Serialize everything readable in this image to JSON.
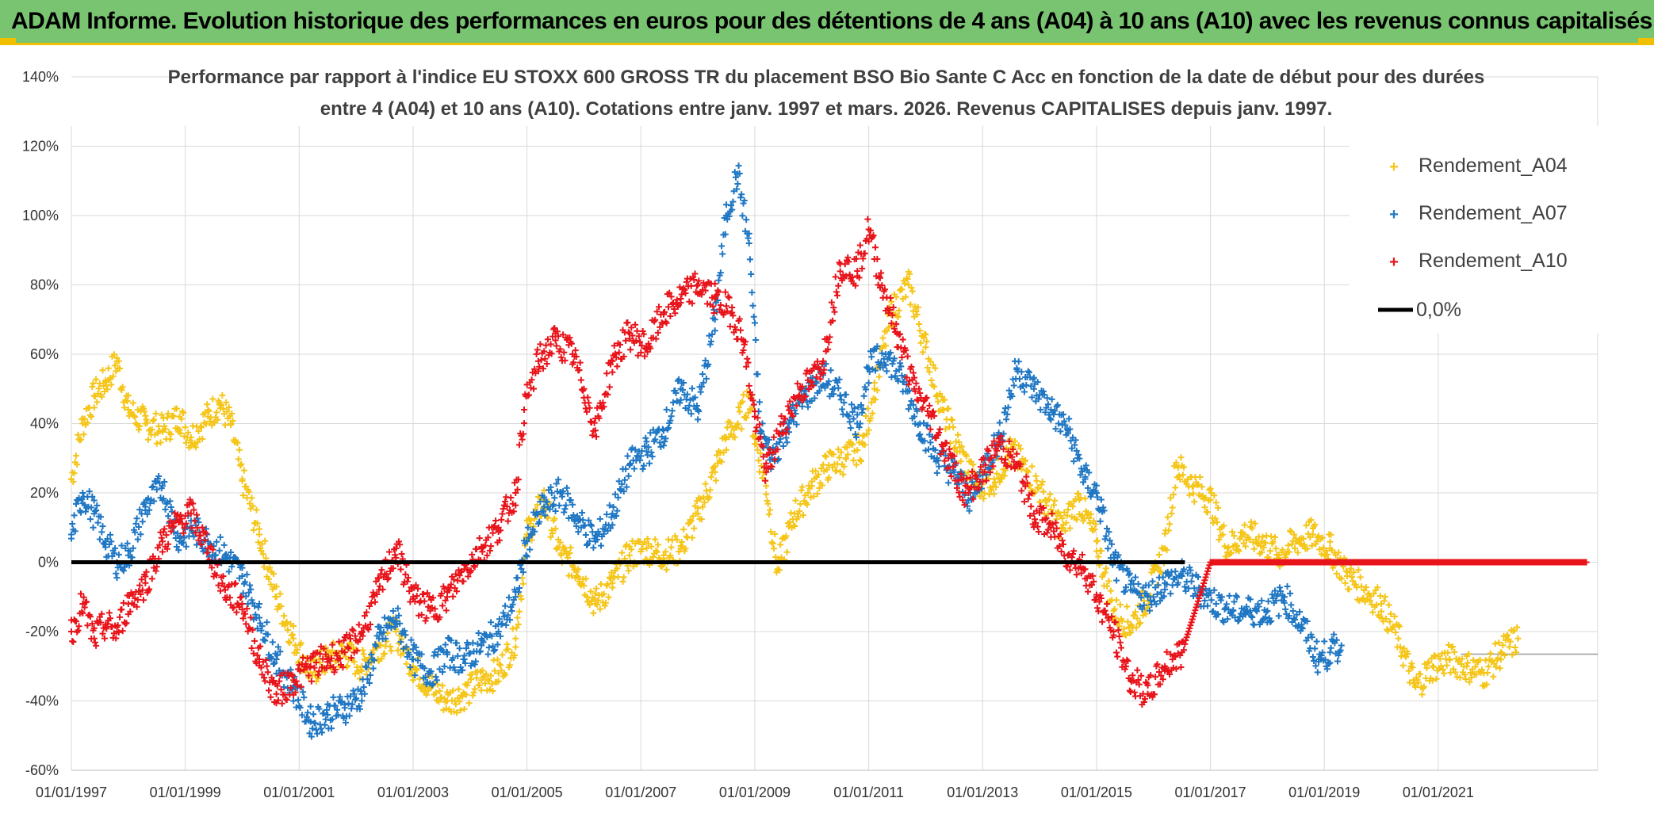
{
  "header": {
    "title": "ADAM Informe. Evolution historique des performances en euros pour des détentions de 4 ans (A04) à 10 ans (A10) avec les revenus connus capitalisés"
  },
  "chart_data": {
    "type": "scatter",
    "title_lines": [
      "Performance par rapport à l'indice EU STOXX 600 GROSS TR  du placement BSO Bio Sante C Acc en fonction de la date de début pour des durées",
      "entre 4 (A04) et 10 ans (A10). Cotations entre janv. 1997 et mars. 2026. Revenus CAPITALISES depuis janv. 1997."
    ],
    "xlabel": "",
    "ylabel": "",
    "x_range": [
      1997.0,
      2023.8
    ],
    "ylim": [
      -60,
      140
    ],
    "y_ticks": [
      "140%",
      "120%",
      "100%",
      "80%",
      "60%",
      "40%",
      "20%",
      "0%",
      "-20%",
      "-40%",
      "-60%"
    ],
    "y_tick_values": [
      140,
      120,
      100,
      80,
      60,
      40,
      20,
      0,
      -20,
      -40,
      -60
    ],
    "x_ticks": [
      "01/01/1997",
      "01/01/1999",
      "01/01/2001",
      "01/01/2003",
      "01/01/2005",
      "01/01/2007",
      "01/01/2009",
      "01/01/2011",
      "01/01/2013",
      "01/01/2015",
      "01/01/2017",
      "01/01/2019",
      "01/01/2021"
    ],
    "x_tick_values": [
      1997,
      1999,
      2001,
      2003,
      2005,
      2007,
      2009,
      2011,
      2013,
      2015,
      2017,
      2019,
      2021
    ],
    "grid": true,
    "legend_position": "top-right",
    "series": [
      {
        "name": "Rendement_A04",
        "color": "#f5c518",
        "marker": "plus",
        "x": [
          1997.0,
          1997.2,
          1997.4,
          1997.6,
          1997.8,
          1998.0,
          1998.3,
          1998.6,
          1998.9,
          1999.1,
          1999.4,
          1999.6,
          1999.8,
          2000.0,
          2000.3,
          2000.6,
          2000.9,
          2001.2,
          2001.5,
          2001.8,
          2002.1,
          2002.4,
          2002.7,
          2003.0,
          2003.3,
          2003.6,
          2003.9,
          2004.2,
          2004.5,
          2004.8,
          2005.0,
          2005.3,
          2005.6,
          2005.9,
          2006.2,
          2006.5,
          2006.8,
          2007.1,
          2007.4,
          2007.7,
          2008.0,
          2008.3,
          2008.5,
          2008.7,
          2008.9,
          2009.0,
          2009.2,
          2009.4,
          2009.7,
          2010.0,
          2010.3,
          2010.6,
          2010.9,
          2011.1,
          2011.4,
          2011.7,
          2012.0,
          2012.3,
          2012.6,
          2012.9,
          2013.2,
          2013.5,
          2013.8,
          2014.1,
          2014.4,
          2014.7,
          2015.0,
          2015.3,
          2015.6,
          2015.9,
          2016.2,
          2016.4,
          2016.7,
          2017.0,
          2017.3,
          2017.6,
          2017.9,
          2018.2,
          2018.5,
          2018.8,
          2019.1,
          2019.4,
          2019.7,
          2020.0,
          2020.3,
          2020.6,
          2020.9,
          2021.2,
          2021.5,
          2021.8,
          2022.1,
          2022.4
        ],
        "values": [
          24,
          40,
          48,
          52,
          58,
          44,
          40,
          38,
          42,
          36,
          42,
          46,
          40,
          24,
          8,
          -10,
          -22,
          -32,
          -28,
          -26,
          -30,
          -24,
          -20,
          -30,
          -36,
          -40,
          -38,
          -34,
          -32,
          -22,
          8,
          18,
          2,
          -2,
          -12,
          -6,
          2,
          4,
          2,
          4,
          14,
          26,
          36,
          40,
          48,
          36,
          22,
          -2,
          14,
          22,
          28,
          30,
          34,
          50,
          72,
          80,
          62,
          44,
          32,
          22,
          24,
          32,
          26,
          18,
          10,
          18,
          6,
          -14,
          -18,
          -10,
          4,
          28,
          22,
          18,
          4,
          8,
          6,
          2,
          6,
          8,
          4,
          -4,
          -8,
          -12,
          -22,
          -36,
          -30,
          -28,
          -30,
          -32,
          -26,
          -22
        ]
      },
      {
        "name": "Rendement_A07",
        "color": "#1f77c4",
        "marker": "plus",
        "x": [
          1997.0,
          1997.2,
          1997.4,
          1997.6,
          1997.8,
          1998.0,
          1998.3,
          1998.6,
          1998.9,
          1999.1,
          1999.4,
          1999.7,
          2000.0,
          2000.3,
          2000.6,
          2000.9,
          2001.2,
          2001.5,
          2001.8,
          2002.1,
          2002.4,
          2002.7,
          2003.0,
          2003.3,
          2003.6,
          2003.9,
          2004.2,
          2004.5,
          2004.8,
          2005.0,
          2005.3,
          2005.6,
          2005.9,
          2006.2,
          2006.5,
          2006.8,
          2007.1,
          2007.4,
          2007.7,
          2008.0,
          2008.3,
          2008.5,
          2008.7,
          2008.9,
          2009.1,
          2009.3,
          2009.6,
          2009.9,
          2010.2,
          2010.5,
          2010.8,
          2011.0,
          2011.3,
          2011.6,
          2011.9,
          2012.2,
          2012.5,
          2012.8,
          2013.1,
          2013.3,
          2013.6,
          2013.9,
          2014.2,
          2014.5,
          2014.8,
          2015.0,
          2015.3,
          2015.6,
          2015.9,
          2016.2,
          2016.5,
          2016.8,
          2017.1,
          2017.4,
          2017.7,
          2018.0,
          2018.3,
          2018.6,
          2018.9,
          2019.1,
          2019.3
        ],
        "values": [
          8,
          20,
          14,
          6,
          0,
          2,
          16,
          22,
          6,
          10,
          6,
          2,
          -4,
          -16,
          -28,
          -36,
          -46,
          -44,
          -42,
          -38,
          -22,
          -16,
          -28,
          -32,
          -26,
          -28,
          -24,
          -20,
          -10,
          6,
          16,
          20,
          12,
          6,
          14,
          28,
          32,
          38,
          50,
          44,
          70,
          100,
          112,
          92,
          38,
          30,
          40,
          48,
          54,
          48,
          40,
          56,
          60,
          52,
          40,
          30,
          26,
          18,
          30,
          36,
          56,
          50,
          44,
          38,
          24,
          20,
          0,
          -8,
          -10,
          -6,
          -4,
          -8,
          -12,
          -14,
          -14,
          -14,
          -10,
          -18,
          -28,
          -26,
          -24
        ]
      },
      {
        "name": "Rendement_A10",
        "color": "#e8141b",
        "marker": "plus",
        "x": [
          1997.0,
          1997.2,
          1997.4,
          1997.6,
          1997.8,
          1998.0,
          1998.3,
          1998.6,
          1998.9,
          1999.1,
          1999.4,
          1999.7,
          2000.0,
          2000.3,
          2000.6,
          2000.9,
          2001.2,
          2001.5,
          2001.8,
          2002.1,
          2002.4,
          2002.7,
          2003.0,
          2003.3,
          2003.6,
          2003.9,
          2004.2,
          2004.5,
          2004.8,
          2004.95,
          2005.2,
          2005.5,
          2005.8,
          2006.0,
          2006.2,
          2006.5,
          2006.8,
          2007.1,
          2007.4,
          2007.7,
          2008.0,
          2008.3,
          2008.6,
          2008.8,
          2009.0,
          2009.2,
          2009.5,
          2009.8,
          2010.0,
          2010.2,
          2010.5,
          2010.8,
          2011.0,
          2011.2,
          2011.5,
          2011.8,
          2012.1,
          2012.4,
          2012.7,
          2013.0,
          2013.3,
          2013.6,
          2013.9,
          2014.2,
          2014.5,
          2014.8,
          2015.0,
          2015.3,
          2015.6,
          2015.9,
          2016.2,
          2016.5,
          2017.0,
          2017.5,
          2018.0,
          2018.5,
          2019.0,
          2019.5,
          2020.0,
          2020.5,
          2021.0,
          2021.5,
          2022.0,
          2022.5,
          2023.0,
          2023.6
        ],
        "values": [
          -20,
          -12,
          -22,
          -18,
          -20,
          -12,
          -6,
          6,
          12,
          14,
          4,
          -8,
          -12,
          -28,
          -38,
          -34,
          -30,
          -28,
          -26,
          -20,
          -8,
          4,
          -10,
          -14,
          -10,
          -2,
          4,
          10,
          20,
          44,
          58,
          64,
          60,
          50,
          38,
          58,
          66,
          62,
          72,
          76,
          80,
          76,
          72,
          64,
          42,
          26,
          40,
          50,
          52,
          58,
          86,
          84,
          96,
          82,
          66,
          50,
          42,
          30,
          20,
          26,
          34,
          28,
          14,
          10,
          2,
          -2,
          -10,
          -20,
          -34,
          -38,
          -30,
          -26,
          0,
          0,
          0,
          0,
          0,
          0,
          0,
          0,
          0,
          0,
          0,
          0,
          0,
          0
        ]
      },
      {
        "name": "0,0%",
        "color": "#000000",
        "marker": "line",
        "x": [
          1997.0,
          2016.55
        ],
        "values": [
          0,
          0
        ]
      }
    ]
  }
}
